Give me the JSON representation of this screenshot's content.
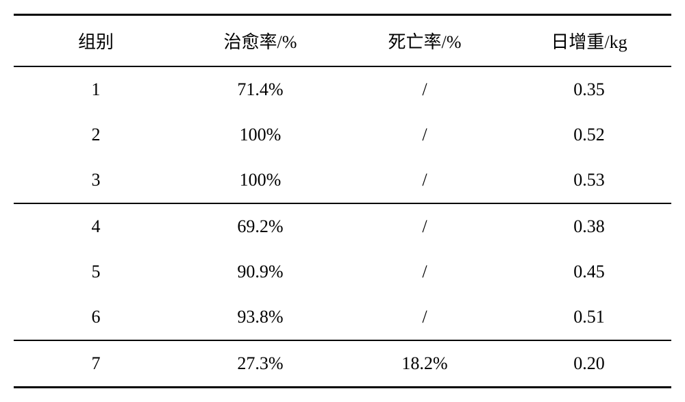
{
  "table": {
    "type": "table",
    "background_color": "#ffffff",
    "text_color": "#000000",
    "font_family": "SimSun",
    "header_fontsize": 26,
    "cell_fontsize": 26,
    "border_color": "#000000",
    "outer_border_width": 3,
    "inner_border_width": 2,
    "column_widths": [
      "25%",
      "25%",
      "25%",
      "25%"
    ],
    "column_align": [
      "center",
      "center",
      "center",
      "center"
    ],
    "columns": [
      "组别",
      "治愈率/%",
      "死亡率/%",
      "日增重/kg"
    ],
    "groups": [
      {
        "rows": [
          {
            "cells": [
              "1",
              "71.4%",
              "/",
              "0.35"
            ]
          },
          {
            "cells": [
              "2",
              "100%",
              "/",
              "0.52"
            ]
          },
          {
            "cells": [
              "3",
              "100%",
              "/",
              "0.53"
            ]
          }
        ]
      },
      {
        "rows": [
          {
            "cells": [
              "4",
              "69.2%",
              "/",
              "0.38"
            ]
          },
          {
            "cells": [
              "5",
              "90.9%",
              "/",
              "0.45"
            ]
          },
          {
            "cells": [
              "6",
              "93.8%",
              "/",
              "0.51"
            ]
          }
        ]
      },
      {
        "rows": [
          {
            "cells": [
              "7",
              "27.3%",
              "18.2%",
              "0.20"
            ]
          }
        ]
      }
    ]
  }
}
